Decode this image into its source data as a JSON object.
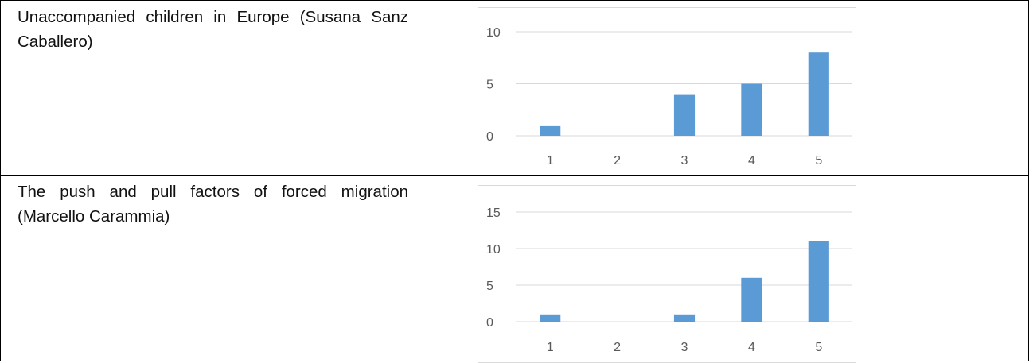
{
  "rows": [
    {
      "label": "Unaccompanied children in Europe (Susana Sanz Caballero)"
    },
    {
      "label": "The push and pull factors of forced migration (Marcello Carammia)"
    }
  ],
  "chart_data": [
    {
      "type": "bar",
      "categories": [
        "1",
        "2",
        "3",
        "4",
        "5"
      ],
      "values": [
        1,
        0,
        4,
        5,
        8
      ],
      "yticks": [
        0,
        5,
        10
      ],
      "ylim": [
        0,
        10
      ],
      "grid": true,
      "bar_color": "#5b9bd5"
    },
    {
      "type": "bar",
      "categories": [
        "1",
        "2",
        "3",
        "4",
        "5"
      ],
      "values": [
        1,
        0,
        1,
        6,
        11
      ],
      "yticks": [
        0,
        5,
        10,
        15
      ],
      "ylim": [
        0,
        15
      ],
      "grid": true,
      "bar_color": "#5b9bd5"
    }
  ]
}
